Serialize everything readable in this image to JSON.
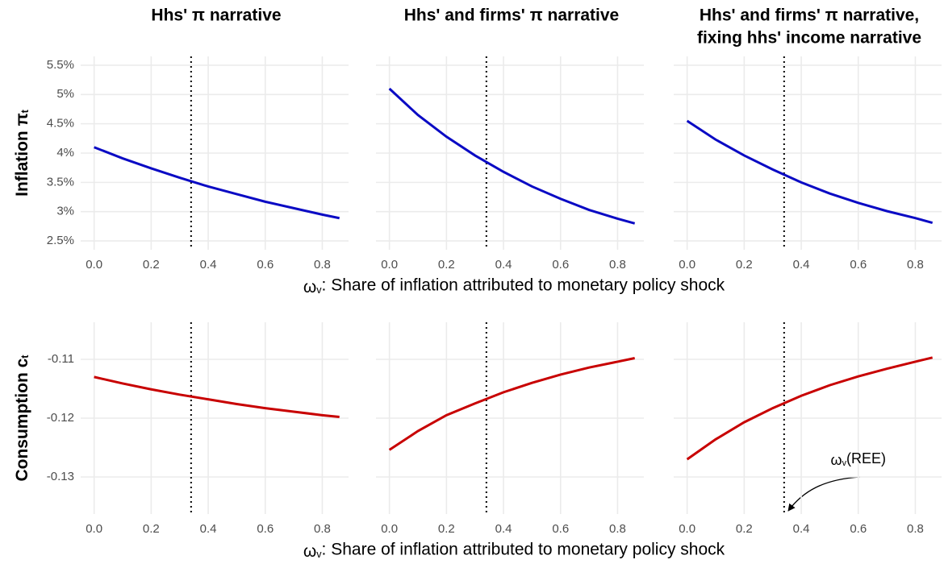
{
  "chart_data": [
    {
      "type": "line",
      "title": [
        "Hhs' π narrative"
      ],
      "ylabel": [
        "Inflation π",
        "t"
      ],
      "x": [
        0,
        0.1,
        0.2,
        0.3,
        0.4,
        0.5,
        0.6,
        0.7,
        0.8,
        0.86
      ],
      "series": [
        {
          "color": "#0a0ac4",
          "values": [
            4.1,
            3.91,
            3.74,
            3.58,
            3.43,
            3.3,
            3.17,
            3.06,
            2.95,
            2.89
          ]
        }
      ],
      "vline": 0.34,
      "xlim": [
        -0.047,
        0.892
      ],
      "xticks": [
        {
          "value": 0,
          "label": "0.0"
        },
        0.2,
        0.4,
        0.6,
        0.8
      ],
      "ylim": [
        2.35,
        5.65
      ],
      "yticks": [
        {
          "value": 2.5,
          "label": "2.5%"
        },
        {
          "value": 3,
          "label": "3%"
        },
        {
          "value": 3.5,
          "label": "3.5%"
        },
        {
          "value": 4,
          "label": "4%"
        },
        {
          "value": 4.5,
          "label": "4.5%"
        },
        {
          "value": 5,
          "label": "5%"
        },
        {
          "value": 5.5,
          "label": "5.5%"
        }
      ],
      "grid": true
    },
    {
      "type": "line",
      "title": [
        "Hhs' and firms' π narrative"
      ],
      "xlabel": [
        "ω",
        "v",
        ": Share of inflation attributed to monetary policy shock"
      ],
      "x": [
        0,
        0.1,
        0.2,
        0.3,
        0.4,
        0.5,
        0.6,
        0.7,
        0.8,
        0.86
      ],
      "series": [
        {
          "color": "#0a0ac4",
          "values": [
            5.1,
            4.65,
            4.28,
            3.96,
            3.68,
            3.43,
            3.22,
            3.03,
            2.88,
            2.8
          ]
        }
      ],
      "vline": 0.34,
      "xlim": [
        -0.047,
        0.892
      ],
      "xticks": [
        {
          "value": 0,
          "label": "0.0"
        },
        0.2,
        0.4,
        0.6,
        0.8
      ],
      "ylim": [
        2.35,
        5.65
      ],
      "yticks": [
        2.5,
        3,
        3.5,
        4,
        4.5,
        5,
        5.5
      ],
      "grid": true
    },
    {
      "type": "line",
      "title": [
        "Hhs' and firms' π narrative,",
        "fixing hhs' income narrative"
      ],
      "x": [
        0,
        0.1,
        0.2,
        0.3,
        0.4,
        0.5,
        0.6,
        0.7,
        0.8,
        0.86
      ],
      "series": [
        {
          "color": "#0a0ac4",
          "values": [
            4.55,
            4.23,
            3.96,
            3.72,
            3.5,
            3.31,
            3.15,
            3.01,
            2.89,
            2.81
          ]
        }
      ],
      "vline": 0.34,
      "xlim": [
        -0.047,
        0.892
      ],
      "xticks": [
        {
          "value": 0,
          "label": "0.0"
        },
        0.2,
        0.4,
        0.6,
        0.8
      ],
      "ylim": [
        2.35,
        5.65
      ],
      "yticks": [
        2.5,
        3,
        3.5,
        4,
        4.5,
        5,
        5.5
      ],
      "grid": true
    },
    {
      "type": "line",
      "ylabel": [
        "Consumption c",
        "t"
      ],
      "x": [
        0,
        0.1,
        0.2,
        0.3,
        0.4,
        0.5,
        0.6,
        0.7,
        0.8,
        0.86
      ],
      "series": [
        {
          "color": "#c80000",
          "values": [
            -0.113,
            -0.1141,
            -0.1151,
            -0.116,
            -0.1168,
            -0.1176,
            -0.1183,
            -0.1189,
            -0.1195,
            -0.1198
          ]
        }
      ],
      "vline": 0.34,
      "xlim": [
        -0.047,
        0.892
      ],
      "xticks": [
        {
          "value": 0,
          "label": "0.0"
        },
        0.2,
        0.4,
        0.6,
        0.8
      ],
      "ylim": [
        -0.1363,
        -0.1037
      ],
      "yticks": [
        -0.13,
        -0.12,
        -0.11
      ],
      "grid": true
    },
    {
      "type": "line",
      "xlabel": [
        "ω",
        "v",
        ": Share of inflation attributed to monetary policy shock"
      ],
      "x": [
        0,
        0.1,
        0.2,
        0.3,
        0.4,
        0.5,
        0.6,
        0.7,
        0.8,
        0.86
      ],
      "series": [
        {
          "color": "#c80000",
          "values": [
            -0.1254,
            -0.1222,
            -0.1195,
            -0.1175,
            -0.1156,
            -0.114,
            -0.1126,
            -0.1114,
            -0.1104,
            -0.1098
          ]
        }
      ],
      "vline": 0.34,
      "xlim": [
        -0.047,
        0.892
      ],
      "xticks": [
        {
          "value": 0,
          "label": "0.0"
        },
        0.2,
        0.4,
        0.6,
        0.8
      ],
      "ylim": [
        -0.1363,
        -0.1037
      ],
      "yticks": [
        -0.13,
        -0.12,
        -0.11
      ],
      "grid": true
    },
    {
      "type": "line",
      "annotation": [
        "ω",
        "v",
        "(REE)"
      ],
      "x": [
        0,
        0.1,
        0.2,
        0.3,
        0.4,
        0.5,
        0.6,
        0.7,
        0.8,
        0.86
      ],
      "series": [
        {
          "color": "#c80000",
          "values": [
            -0.127,
            -0.1236,
            -0.1207,
            -0.1183,
            -0.1162,
            -0.1144,
            -0.1129,
            -0.1116,
            -0.1104,
            -0.1097
          ]
        }
      ],
      "vline": 0.34,
      "xlim": [
        -0.047,
        0.892
      ],
      "xticks": [
        {
          "value": 0,
          "label": "0.0"
        },
        0.2,
        0.4,
        0.6,
        0.8
      ],
      "ylim": [
        -0.1363,
        -0.1037
      ],
      "yticks": [
        -0.13,
        -0.12,
        -0.11
      ],
      "grid": true
    }
  ]
}
